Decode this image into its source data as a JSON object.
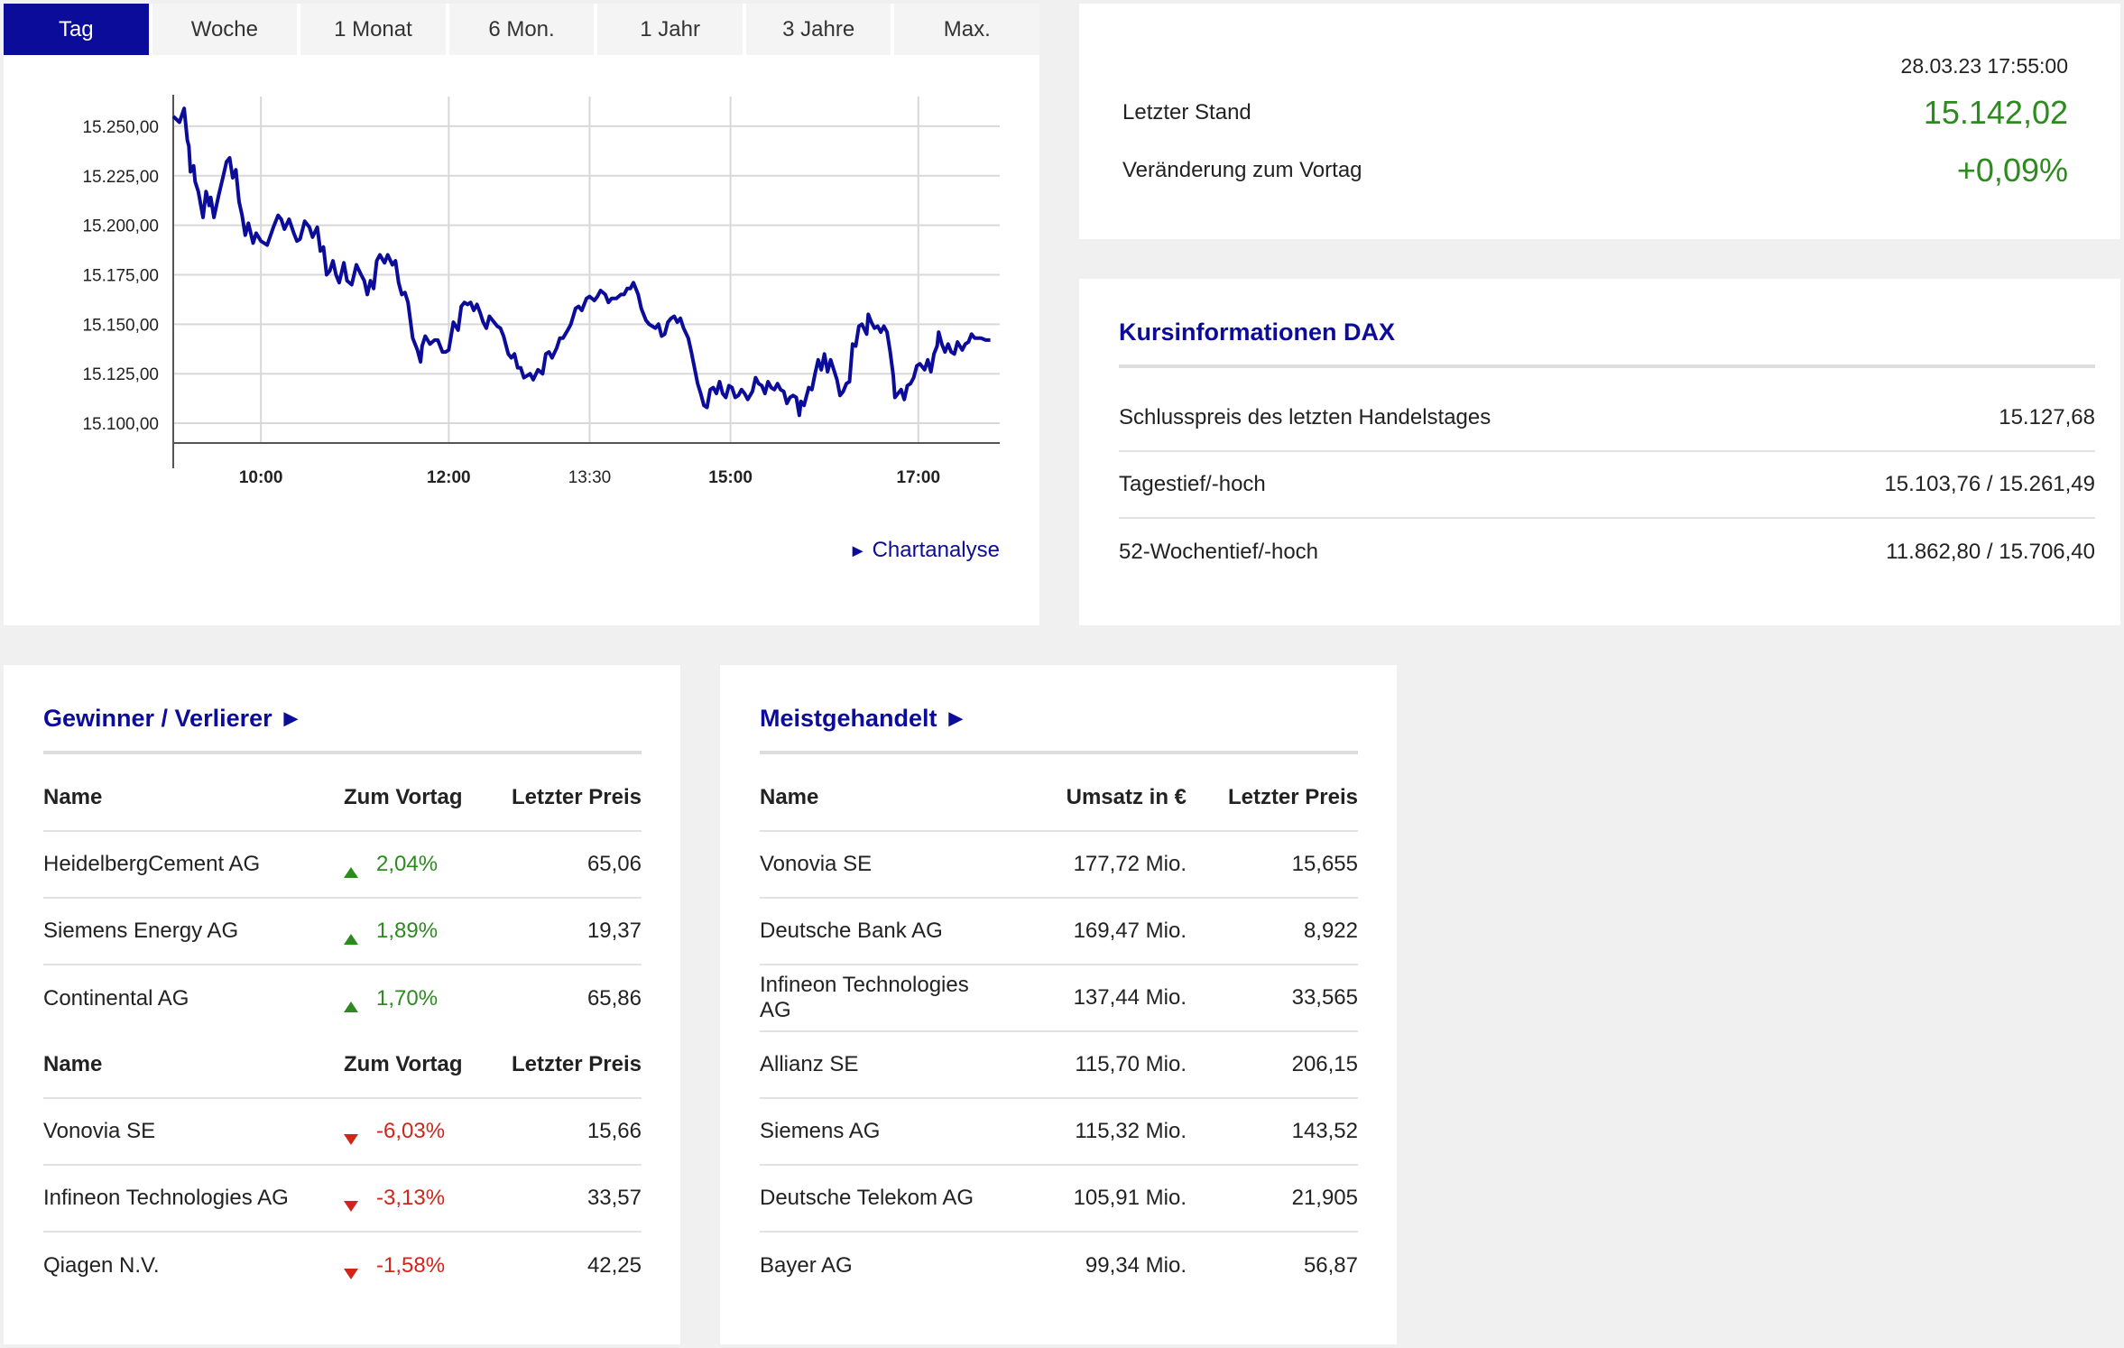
{
  "tabs": [
    "Tag",
    "Woche",
    "1 Monat",
    "6 Mon.",
    "1 Jahr",
    "3 Jahre",
    "Max."
  ],
  "active_tab": "Tag",
  "colors": {
    "accent": "#0c0c9a",
    "up": "#2d8a1f",
    "down": "#d4241a"
  },
  "chart_data": {
    "type": "line",
    "title": "",
    "xlabel": "",
    "ylabel": "",
    "y_ticks": [
      "15.250,00",
      "15.225,00",
      "15.200,00",
      "15.175,00",
      "15.150,00",
      "15.125,00",
      "15.100,00"
    ],
    "x_ticks": [
      {
        "label": "10:00",
        "bold": true
      },
      {
        "label": "12:00",
        "bold": true
      },
      {
        "label": "13:30",
        "bold": false
      },
      {
        "label": "15:00",
        "bold": true
      },
      {
        "label": "17:00",
        "bold": true
      }
    ],
    "ylim": [
      15090,
      15265
    ],
    "xlim": [
      "09:04",
      "17:52"
    ],
    "grid": true,
    "series": [
      {
        "color": "#0c0c9a",
        "points": [
          [
            "09:04",
            15255
          ],
          [
            "09:08",
            15252
          ],
          [
            "09:11",
            15259
          ],
          [
            "09:13",
            15243
          ],
          [
            "09:14",
            15240
          ],
          [
            "09:15",
            15227
          ],
          [
            "09:17",
            15230
          ],
          [
            "09:18",
            15222
          ],
          [
            "09:20",
            15217
          ],
          [
            "09:23",
            15204
          ],
          [
            "09:25",
            15217
          ],
          [
            "09:27",
            15210
          ],
          [
            "09:28",
            15214
          ],
          [
            "09:30",
            15204
          ],
          [
            "09:33",
            15215
          ],
          [
            "09:36",
            15225
          ],
          [
            "09:38",
            15232
          ],
          [
            "09:40",
            15234
          ],
          [
            "09:42",
            15224
          ],
          [
            "09:44",
            15228
          ],
          [
            "09:46",
            15212
          ],
          [
            "09:48",
            15205
          ],
          [
            "09:50",
            15195
          ],
          [
            "09:52",
            15201
          ],
          [
            "09:55",
            15191
          ],
          [
            "09:57",
            15196
          ],
          [
            "10:00",
            15192
          ],
          [
            "10:04",
            15190
          ],
          [
            "10:08",
            15199
          ],
          [
            "10:11",
            15205
          ],
          [
            "10:13",
            15203
          ],
          [
            "10:15",
            15198
          ],
          [
            "10:18",
            15203
          ],
          [
            "10:21",
            15196
          ],
          [
            "10:23",
            15192
          ],
          [
            "10:25",
            15193
          ],
          [
            "10:28",
            15202
          ],
          [
            "10:31",
            15199
          ],
          [
            "10:33",
            15194
          ],
          [
            "10:36",
            15199
          ],
          [
            "10:38",
            15187
          ],
          [
            "10:40",
            15189
          ],
          [
            "10:42",
            15175
          ],
          [
            "10:44",
            15177
          ],
          [
            "10:46",
            15182
          ],
          [
            "10:48",
            15175
          ],
          [
            "10:50",
            15171
          ],
          [
            "10:53",
            15181
          ],
          [
            "10:55",
            15172
          ],
          [
            "10:58",
            15170
          ],
          [
            "11:01",
            15180
          ],
          [
            "11:04",
            15175
          ],
          [
            "11:06",
            15172
          ],
          [
            "11:08",
            15165
          ],
          [
            "11:10",
            15172
          ],
          [
            "11:12",
            15168
          ],
          [
            "11:14",
            15182
          ],
          [
            "11:16",
            15185
          ],
          [
            "11:19",
            15181
          ],
          [
            "11:21",
            15185
          ],
          [
            "11:24",
            15180
          ],
          [
            "11:26",
            15182
          ],
          [
            "11:28",
            15171
          ],
          [
            "11:30",
            15165
          ],
          [
            "11:32",
            15166
          ],
          [
            "11:34",
            15161
          ],
          [
            "11:37",
            15143
          ],
          [
            "11:40",
            15137
          ],
          [
            "11:42",
            15131
          ],
          [
            "11:43",
            15139
          ],
          [
            "11:45",
            15144
          ],
          [
            "11:48",
            15140
          ],
          [
            "11:51",
            15142
          ],
          [
            "11:53",
            15142
          ],
          [
            "11:56",
            15136
          ],
          [
            "11:58",
            15136
          ],
          [
            "12:00",
            15137
          ],
          [
            "12:03",
            15151
          ],
          [
            "12:06",
            15147
          ],
          [
            "12:08",
            15159
          ],
          [
            "12:10",
            15161
          ],
          [
            "12:12",
            15160
          ],
          [
            "12:14",
            15161
          ],
          [
            "12:16",
            15157
          ],
          [
            "12:18",
            15160
          ],
          [
            "12:20",
            15156
          ],
          [
            "12:22",
            15151
          ],
          [
            "12:24",
            15148
          ],
          [
            "12:26",
            15154
          ],
          [
            "12:29",
            15151
          ],
          [
            "12:31",
            15149
          ],
          [
            "12:33",
            15148
          ],
          [
            "12:35",
            15144
          ],
          [
            "12:38",
            15135
          ],
          [
            "12:40",
            15133
          ],
          [
            "12:42",
            15135
          ],
          [
            "12:44",
            15128
          ],
          [
            "12:46",
            15128
          ],
          [
            "12:48",
            15123
          ],
          [
            "12:50",
            15124
          ],
          [
            "12:52",
            15125
          ],
          [
            "12:54",
            15122
          ],
          [
            "12:57",
            15127
          ],
          [
            "13:00",
            15125
          ],
          [
            "13:02",
            15135
          ],
          [
            "13:04",
            15136
          ],
          [
            "13:06",
            15133
          ],
          [
            "13:09",
            15138
          ],
          [
            "13:11",
            15143
          ],
          [
            "13:13",
            15143
          ],
          [
            "13:16",
            15147
          ],
          [
            "13:18",
            15150
          ],
          [
            "13:21",
            15158
          ],
          [
            "13:23",
            15159
          ],
          [
            "13:25",
            15157
          ],
          [
            "13:28",
            15163
          ],
          [
            "13:30",
            15164
          ],
          [
            "13:33",
            15162
          ],
          [
            "13:35",
            15164
          ],
          [
            "13:37",
            15167
          ],
          [
            "13:40",
            15165
          ],
          [
            "13:42",
            15161
          ],
          [
            "13:44",
            15163
          ],
          [
            "13:47",
            15163
          ],
          [
            "13:50",
            15165
          ],
          [
            "13:52",
            15165
          ],
          [
            "13:54",
            15168
          ],
          [
            "13:56",
            15168
          ],
          [
            "13:58",
            15171
          ],
          [
            "14:01",
            15165
          ],
          [
            "14:03",
            15158
          ],
          [
            "14:06",
            15152
          ],
          [
            "14:08",
            15150
          ],
          [
            "14:10",
            15149
          ],
          [
            "14:12",
            15148
          ],
          [
            "14:14",
            15150
          ],
          [
            "14:16",
            15144
          ],
          [
            "14:18",
            15145
          ],
          [
            "14:20",
            15151
          ],
          [
            "14:22",
            15153
          ],
          [
            "14:24",
            15154
          ],
          [
            "14:26",
            15151
          ],
          [
            "14:28",
            15153
          ],
          [
            "14:30",
            15148
          ],
          [
            "14:33",
            15143
          ],
          [
            "14:35",
            15136
          ],
          [
            "14:37",
            15128
          ],
          [
            "14:39",
            15120
          ],
          [
            "14:41",
            15115
          ],
          [
            "14:43",
            15109
          ],
          [
            "14:45",
            15108
          ],
          [
            "14:47",
            15117
          ],
          [
            "14:49",
            15118
          ],
          [
            "14:51",
            15115
          ],
          [
            "14:53",
            15121
          ],
          [
            "14:55",
            15115
          ],
          [
            "14:57",
            15113
          ],
          [
            "14:59",
            15119
          ],
          [
            "15:01",
            15118
          ],
          [
            "15:03",
            15113
          ],
          [
            "15:05",
            15114
          ],
          [
            "15:07",
            15117
          ],
          [
            "15:09",
            15115
          ],
          [
            "15:11",
            15112
          ],
          [
            "15:14",
            15116
          ],
          [
            "15:16",
            15123
          ],
          [
            "15:18",
            15120
          ],
          [
            "15:20",
            15119
          ],
          [
            "15:22",
            15115
          ],
          [
            "15:24",
            15121
          ],
          [
            "15:26",
            15118
          ],
          [
            "15:28",
            15117
          ],
          [
            "15:30",
            15120
          ],
          [
            "15:32",
            15117
          ],
          [
            "15:34",
            15116
          ],
          [
            "15:36",
            15110
          ],
          [
            "15:38",
            15113
          ],
          [
            "15:40",
            15114
          ],
          [
            "15:42",
            15113
          ],
          [
            "15:44",
            15104
          ],
          [
            "15:45",
            15111
          ],
          [
            "15:47",
            15109
          ],
          [
            "15:50",
            15118
          ],
          [
            "15:52",
            15117
          ],
          [
            "15:54",
            15125
          ],
          [
            "15:56",
            15132
          ],
          [
            "15:58",
            15127
          ],
          [
            "16:00",
            15135
          ],
          [
            "16:02",
            15126
          ],
          [
            "16:04",
            15132
          ],
          [
            "16:06",
            15127
          ],
          [
            "16:08",
            15122
          ],
          [
            "16:10",
            15114
          ],
          [
            "16:12",
            15116
          ],
          [
            "16:14",
            15120
          ],
          [
            "16:16",
            15121
          ],
          [
            "16:18",
            15140
          ],
          [
            "16:20",
            15139
          ],
          [
            "16:22",
            15149
          ],
          [
            "16:24",
            15150
          ],
          [
            "16:27",
            15145
          ],
          [
            "16:28",
            15155
          ],
          [
            "16:30",
            15151
          ],
          [
            "16:32",
            15148
          ],
          [
            "16:34",
            15149
          ],
          [
            "16:36",
            15146
          ],
          [
            "16:38",
            15149
          ],
          [
            "16:40",
            15146
          ],
          [
            "16:42",
            15136
          ],
          [
            "16:44",
            15124
          ],
          [
            "16:45",
            15113
          ],
          [
            "16:47",
            15115
          ],
          [
            "16:49",
            15117
          ],
          [
            "16:51",
            15112
          ],
          [
            "16:53",
            15119
          ],
          [
            "16:55",
            15120
          ],
          [
            "16:57",
            15123
          ],
          [
            "16:59",
            15129
          ],
          [
            "17:01",
            15130
          ],
          [
            "17:04",
            15127
          ],
          [
            "17:06",
            15132
          ],
          [
            "17:08",
            15126
          ],
          [
            "17:10",
            15135
          ],
          [
            "17:12",
            15139
          ],
          [
            "17:13",
            15146
          ],
          [
            "17:15",
            15140
          ],
          [
            "17:17",
            15136
          ],
          [
            "17:19",
            15140
          ],
          [
            "17:21",
            15136
          ],
          [
            "17:23",
            15135
          ],
          [
            "17:25",
            15141
          ],
          [
            "17:28",
            15137
          ],
          [
            "17:30",
            15140
          ],
          [
            "17:32",
            15141
          ],
          [
            "17:34",
            15145
          ],
          [
            "17:36",
            15143
          ],
          [
            "17:38",
            15143
          ],
          [
            "17:40",
            15143
          ],
          [
            "17:43",
            15142
          ],
          [
            "17:46",
            15142
          ]
        ]
      }
    ]
  },
  "chartanalyse_link": "Chartanalyse",
  "quote": {
    "datetime": "28.03.23 17:55:00",
    "last_label": "Letzter Stand",
    "last_value": "15.142,02",
    "change_label": "Veränderung zum Vortag",
    "change_value": "+0,09%"
  },
  "kursinfo": {
    "title": "Kursinformationen DAX",
    "rows": [
      {
        "label": "Schlusspreis des letzten Handelstages",
        "value": "15.127,68"
      },
      {
        "label": "Tagestief/-hoch",
        "value": "15.103,76 / 15.261,49"
      },
      {
        "label": "52-Wochentief/-hoch",
        "value": "11.862,80 / 15.706,40"
      }
    ]
  },
  "gewinner": {
    "title": "Gewinner / Verlierer ►",
    "headers": {
      "name": "Name",
      "change": "Zum Vortag",
      "price": "Letzter Preis"
    },
    "winners": [
      {
        "name": "HeidelbergCement AG",
        "change": "2,04%",
        "price": "65,06"
      },
      {
        "name": "Siemens Energy AG",
        "change": "1,89%",
        "price": "19,37"
      },
      {
        "name": "Continental AG",
        "change": "1,70%",
        "price": "65,86"
      }
    ],
    "losers": [
      {
        "name": "Vonovia SE",
        "change": "-6,03%",
        "price": "15,66"
      },
      {
        "name": "Infineon Technologies AG",
        "change": "-3,13%",
        "price": "33,57"
      },
      {
        "name": "Qiagen N.V.",
        "change": "-1,58%",
        "price": "42,25"
      }
    ]
  },
  "meistgehandelt": {
    "title": "Meistgehandelt ►",
    "headers": {
      "name": "Name",
      "umsatz": "Umsatz in €",
      "price": "Letzter Preis"
    },
    "rows": [
      {
        "name": "Vonovia SE",
        "umsatz": "177,72 Mio.",
        "price": "15,655"
      },
      {
        "name": "Deutsche Bank AG",
        "umsatz": "169,47 Mio.",
        "price": "8,922"
      },
      {
        "name": "Infineon Technologies AG",
        "umsatz": "137,44 Mio.",
        "price": "33,565"
      },
      {
        "name": "Allianz SE",
        "umsatz": "115,70 Mio.",
        "price": "206,15"
      },
      {
        "name": "Siemens AG",
        "umsatz": "115,32 Mio.",
        "price": "143,52"
      },
      {
        "name": "Deutsche Telekom AG",
        "umsatz": "105,91 Mio.",
        "price": "21,905"
      },
      {
        "name": "Bayer AG",
        "umsatz": "99,34 Mio.",
        "price": "56,87"
      }
    ]
  }
}
